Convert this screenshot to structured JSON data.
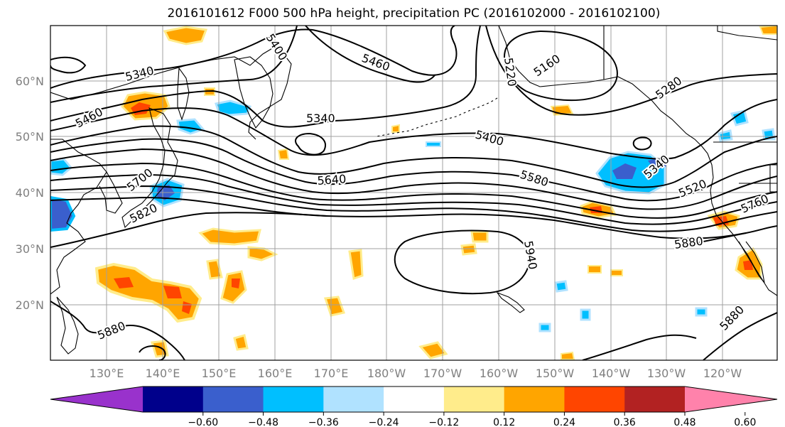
{
  "title": "2016101612 F000 500 hPa height, precipitation PC (2016102000 - 2016102100)",
  "map": {
    "lat_labels": [
      "60°N",
      "50°N",
      "40°N",
      "30°N",
      "20°N"
    ],
    "lon_labels": [
      "130°E",
      "140°E",
      "150°E",
      "160°E",
      "170°E",
      "180°W",
      "170°W",
      "160°W",
      "150°W",
      "140°W",
      "130°W",
      "120°W"
    ],
    "contour_labels": [
      "5340",
      "5400",
      "5460",
      "5220",
      "5160",
      "5280",
      "5460",
      "5340",
      "5400",
      "5700",
      "5640",
      "5580",
      "5340",
      "5520",
      "5820",
      "5760",
      "5880",
      "5940",
      "5880",
      "5880"
    ],
    "colors": {
      "land_outline": "#000000",
      "grid": "#a0a0a0",
      "contour": "#000000"
    }
  },
  "colorbar": {
    "colors": [
      "#9932cc",
      "#00008b",
      "#3a5fcd",
      "#00bfff",
      "#b0e2ff",
      "#ffffff",
      "#ffec8b",
      "#ffa500",
      "#ff4500",
      "#b22222",
      "#ff82ab"
    ],
    "tick_labels": [
      "−0.60",
      "−0.48",
      "−0.36",
      "−0.24",
      "−0.12",
      "0.12",
      "0.24",
      "0.36",
      "0.48",
      "0.60"
    ]
  }
}
